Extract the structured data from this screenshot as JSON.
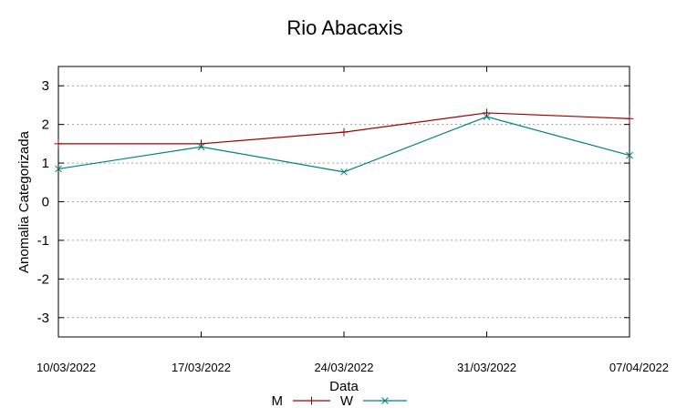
{
  "chart_data": {
    "type": "line",
    "title": "Rio Abacaxis",
    "xlabel": "Data",
    "ylabel": "Anomalia Categorizada",
    "categories": [
      "10/03/2022",
      "17/03/2022",
      "24/03/2022",
      "31/03/2022",
      "07/04/2022"
    ],
    "ylim": [
      -3.5,
      3.5
    ],
    "yticks": [
      3,
      2,
      1,
      0,
      -1,
      -2,
      -3
    ],
    "ytick_labels": [
      "3",
      "2",
      "1",
      "0",
      "-1",
      "-2",
      "-3"
    ],
    "grid": true,
    "legend_position": "bottom-center",
    "series": [
      {
        "name": "M",
        "color": "#a00000",
        "marker": "plus",
        "values": [
          1.5,
          1.5,
          1.8,
          2.3,
          2.15
        ]
      },
      {
        "name": "W",
        "color": "#00807f",
        "marker": "cross",
        "values": [
          0.85,
          1.42,
          0.77,
          2.2,
          1.2
        ]
      }
    ]
  }
}
